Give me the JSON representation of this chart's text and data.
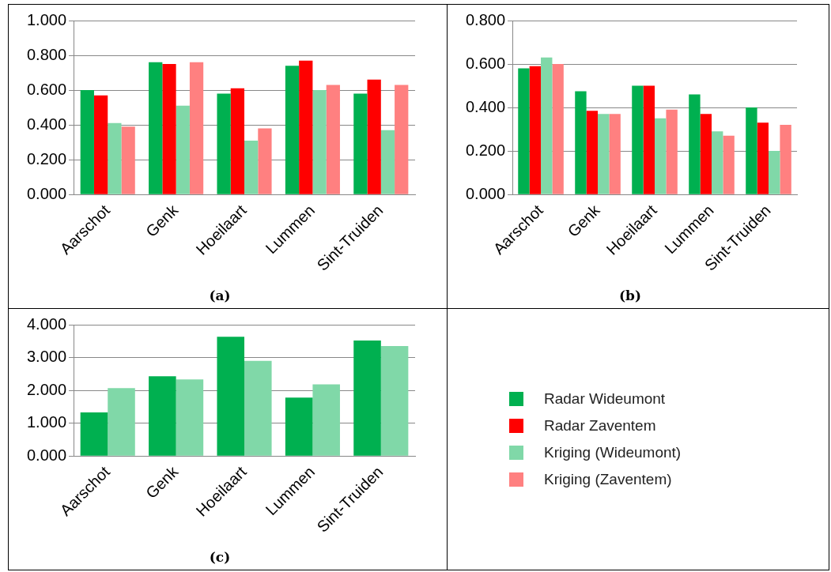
{
  "chart_data": [
    {
      "type": "bar",
      "title": "(a)",
      "categories": [
        "Aarschot",
        "Genk",
        "Hoeilaart",
        "Lummen",
        "Sint-Truiden"
      ],
      "series": [
        {
          "name": "Radar Wideumont",
          "color": "#00b050",
          "values": [
            0.6,
            0.76,
            0.58,
            0.74,
            0.58
          ]
        },
        {
          "name": "Radar Zaventem",
          "color": "#ff0000",
          "values": [
            0.57,
            0.75,
            0.61,
            0.77,
            0.66
          ]
        },
        {
          "name": "Kriging (Wideumont)",
          "color": "#80d8a8",
          "values": [
            0.41,
            0.51,
            0.31,
            0.6,
            0.37
          ]
        },
        {
          "name": "Kriging (Zaventem)",
          "color": "#ff8080",
          "values": [
            0.39,
            0.76,
            0.38,
            0.63,
            0.63
          ]
        }
      ],
      "ylim": [
        0,
        1
      ],
      "yticks": [
        {
          "value": 0,
          "label": "0.000"
        },
        {
          "value": 0.2,
          "label": "0.200"
        },
        {
          "value": 0.4,
          "label": "0.400"
        },
        {
          "value": 0.6,
          "label": "0.600"
        },
        {
          "value": 0.8,
          "label": "0.800"
        },
        {
          "value": 1,
          "label": "1.000"
        }
      ],
      "grid": "y",
      "legend": "bottom right"
    },
    {
      "type": "bar",
      "title": "(b)",
      "categories": [
        "Aarschot",
        "Genk",
        "Hoeilaart",
        "Lummen",
        "Sint-Truiden"
      ],
      "series": [
        {
          "name": "Radar Wideumont",
          "color": "#00b050",
          "values": [
            0.58,
            0.475,
            0.5,
            0.46,
            0.4
          ]
        },
        {
          "name": "Radar Zaventem",
          "color": "#ff0000",
          "values": [
            0.59,
            0.385,
            0.5,
            0.37,
            0.33
          ]
        },
        {
          "name": "Kriging (Wideumont)",
          "color": "#80d8a8",
          "values": [
            0.63,
            0.37,
            0.35,
            0.29,
            0.2
          ]
        },
        {
          "name": "Kriging (Zaventem)",
          "color": "#ff8080",
          "values": [
            0.6,
            0.37,
            0.39,
            0.27,
            0.32
          ]
        }
      ],
      "ylim": [
        0,
        0.8
      ],
      "yticks": [
        {
          "value": 0,
          "label": "0.000"
        },
        {
          "value": 0.2,
          "label": "0.200"
        },
        {
          "value": 0.4,
          "label": "0.400"
        },
        {
          "value": 0.6,
          "label": "0.600"
        },
        {
          "value": 0.8,
          "label": "0.800"
        }
      ],
      "grid": "y"
    },
    {
      "type": "bar",
      "title": "(c)",
      "categories": [
        "Aarschot",
        "Genk",
        "Hoeilaart",
        "Lummen",
        "Sint-Truiden"
      ],
      "series": [
        {
          "name": "Radar Wideumont",
          "color": "#00b050",
          "values": [
            1.33,
            2.43,
            3.63,
            1.78,
            3.52
          ]
        },
        {
          "name": "Kriging (Wideumont)",
          "color": "#80d8a8",
          "values": [
            2.07,
            2.33,
            2.9,
            2.18,
            3.35
          ]
        }
      ],
      "ylim": [
        0,
        4
      ],
      "yticks": [
        {
          "value": 0,
          "label": "0.000"
        },
        {
          "value": 1,
          "label": "1.000"
        },
        {
          "value": 2,
          "label": "2.000"
        },
        {
          "value": 3,
          "label": "3.000"
        },
        {
          "value": 4,
          "label": "4.000"
        }
      ],
      "grid": "y"
    }
  ]
}
